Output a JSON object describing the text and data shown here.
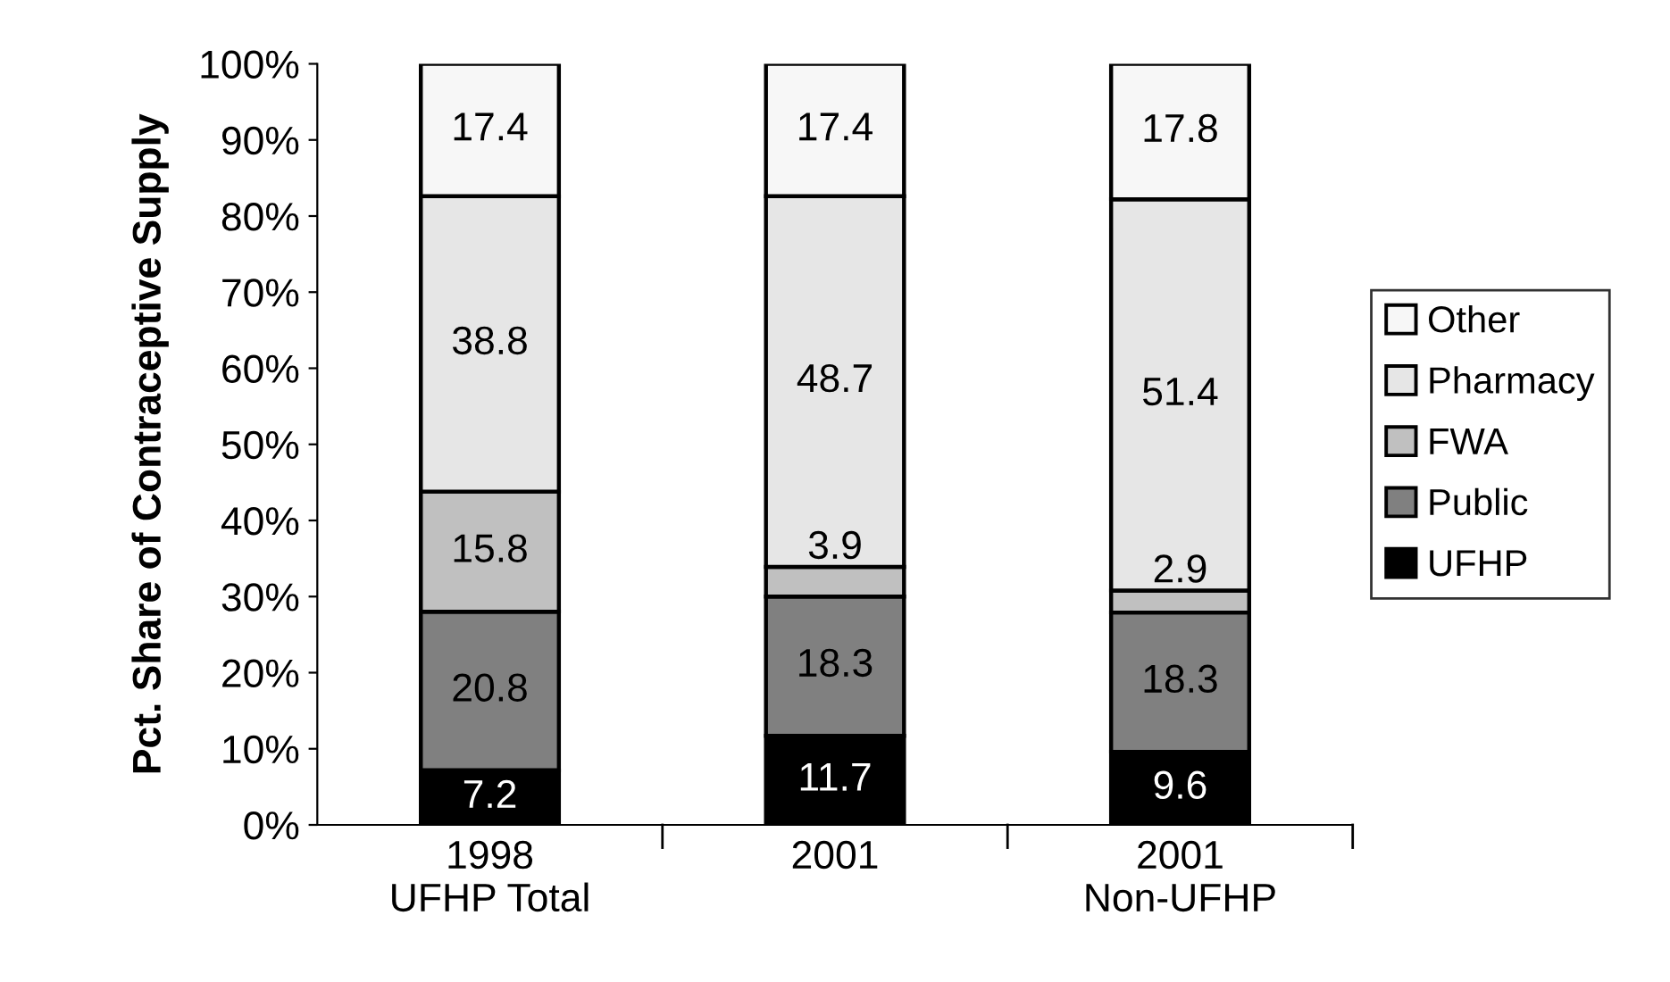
{
  "chart_data": {
    "type": "bar",
    "stacked": true,
    "ylabel": "Pct. Share of Contraceptive Supply",
    "categories": [
      "1998\nUFHP Total",
      "2001",
      "2001\nNon-UFHP"
    ],
    "series": [
      {
        "name": "UFHP",
        "color": "#000000",
        "values": [
          7.2,
          11.7,
          9.6
        ]
      },
      {
        "name": "Public",
        "color": "#808080",
        "values": [
          20.8,
          18.3,
          18.3
        ]
      },
      {
        "name": "FWA",
        "color": "#c0c0c0",
        "values": [
          15.8,
          3.9,
          2.9
        ]
      },
      {
        "name": "Pharmacy",
        "color": "#e6e6e6",
        "values": [
          38.8,
          48.7,
          51.4
        ]
      },
      {
        "name": "Other",
        "color": "#f7f7f7",
        "values": [
          17.4,
          17.4,
          17.8
        ]
      }
    ],
    "ylim": [
      0,
      100
    ],
    "yticks": [
      {
        "value": 0,
        "label": "0%"
      },
      {
        "value": 10,
        "label": "10%"
      },
      {
        "value": 20,
        "label": "20%"
      },
      {
        "value": 30,
        "label": "30%"
      },
      {
        "value": 40,
        "label": "40%"
      },
      {
        "value": 50,
        "label": "50%"
      },
      {
        "value": 60,
        "label": "60%"
      },
      {
        "value": 70,
        "label": "70%"
      },
      {
        "value": 80,
        "label": "80%"
      },
      {
        "value": 90,
        "label": "90%"
      },
      {
        "value": 100,
        "label": "100%"
      }
    ],
    "data_labels": true,
    "grid": false,
    "legend": "right"
  }
}
